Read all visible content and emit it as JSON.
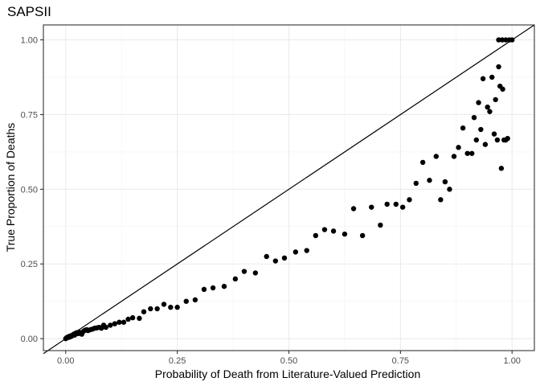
{
  "chart_data": {
    "type": "scatter",
    "title": "SAPSII",
    "xlabel": "Probability of Death from Literature-Valued Prediction",
    "ylabel": "True Proportion of Deaths",
    "xlim": [
      -0.05,
      1.05
    ],
    "ylim": [
      -0.04,
      1.05
    ],
    "x_ticks": [
      0.0,
      0.25,
      0.5,
      0.75,
      1.0
    ],
    "x_tick_labels": [
      "0.00",
      "0.25",
      "0.50",
      "0.75",
      "1.00"
    ],
    "y_ticks": [
      0.0,
      0.25,
      0.5,
      0.75,
      1.0
    ],
    "y_tick_labels": [
      "0.00",
      "0.25",
      "0.50",
      "0.75",
      "1.00"
    ],
    "grid": true,
    "reference_line": {
      "type": "identity",
      "from": [
        -0.05,
        -0.05
      ],
      "to": [
        1.05,
        1.05
      ]
    },
    "point_color": "#000000",
    "points": [
      [
        0.0,
        0.0
      ],
      [
        0.002,
        0.003
      ],
      [
        0.004,
        0.005
      ],
      [
        0.006,
        0.004
      ],
      [
        0.008,
        0.008
      ],
      [
        0.01,
        0.006
      ],
      [
        0.012,
        0.01
      ],
      [
        0.014,
        0.009
      ],
      [
        0.016,
        0.012
      ],
      [
        0.018,
        0.015
      ],
      [
        0.02,
        0.012
      ],
      [
        0.022,
        0.018
      ],
      [
        0.025,
        0.02
      ],
      [
        0.028,
        0.017
      ],
      [
        0.03,
        0.022
      ],
      [
        0.033,
        0.019
      ],
      [
        0.036,
        0.015
      ],
      [
        0.04,
        0.025
      ],
      [
        0.043,
        0.028
      ],
      [
        0.047,
        0.03
      ],
      [
        0.05,
        0.027
      ],
      [
        0.055,
        0.03
      ],
      [
        0.06,
        0.032
      ],
      [
        0.065,
        0.035
      ],
      [
        0.07,
        0.036
      ],
      [
        0.075,
        0.038
      ],
      [
        0.08,
        0.035
      ],
      [
        0.085,
        0.045
      ],
      [
        0.09,
        0.038
      ],
      [
        0.1,
        0.045
      ],
      [
        0.11,
        0.05
      ],
      [
        0.12,
        0.055
      ],
      [
        0.13,
        0.055
      ],
      [
        0.14,
        0.065
      ],
      [
        0.15,
        0.07
      ],
      [
        0.165,
        0.068
      ],
      [
        0.175,
        0.09
      ],
      [
        0.19,
        0.1
      ],
      [
        0.205,
        0.1
      ],
      [
        0.22,
        0.115
      ],
      [
        0.235,
        0.105
      ],
      [
        0.25,
        0.105
      ],
      [
        0.27,
        0.125
      ],
      [
        0.29,
        0.13
      ],
      [
        0.31,
        0.165
      ],
      [
        0.33,
        0.17
      ],
      [
        0.355,
        0.175
      ],
      [
        0.38,
        0.2
      ],
      [
        0.4,
        0.225
      ],
      [
        0.425,
        0.22
      ],
      [
        0.45,
        0.275
      ],
      [
        0.47,
        0.26
      ],
      [
        0.49,
        0.27
      ],
      [
        0.515,
        0.29
      ],
      [
        0.54,
        0.295
      ],
      [
        0.56,
        0.345
      ],
      [
        0.58,
        0.365
      ],
      [
        0.6,
        0.36
      ],
      [
        0.625,
        0.35
      ],
      [
        0.645,
        0.435
      ],
      [
        0.665,
        0.345
      ],
      [
        0.685,
        0.44
      ],
      [
        0.705,
        0.38
      ],
      [
        0.72,
        0.45
      ],
      [
        0.74,
        0.45
      ],
      [
        0.755,
        0.44
      ],
      [
        0.77,
        0.465
      ],
      [
        0.785,
        0.52
      ],
      [
        0.8,
        0.59
      ],
      [
        0.815,
        0.53
      ],
      [
        0.83,
        0.61
      ],
      [
        0.84,
        0.465
      ],
      [
        0.85,
        0.525
      ],
      [
        0.86,
        0.5
      ],
      [
        0.87,
        0.61
      ],
      [
        0.88,
        0.64
      ],
      [
        0.89,
        0.705
      ],
      [
        0.9,
        0.62
      ],
      [
        0.91,
        0.62
      ],
      [
        0.915,
        0.74
      ],
      [
        0.92,
        0.665
      ],
      [
        0.925,
        0.79
      ],
      [
        0.93,
        0.7
      ],
      [
        0.935,
        0.87
      ],
      [
        0.94,
        0.65
      ],
      [
        0.945,
        0.775
      ],
      [
        0.95,
        0.76
      ],
      [
        0.955,
        0.875
      ],
      [
        0.96,
        0.685
      ],
      [
        0.963,
        0.8
      ],
      [
        0.967,
        0.665
      ],
      [
        0.97,
        0.91
      ],
      [
        0.973,
        0.845
      ],
      [
        0.976,
        0.57
      ],
      [
        0.979,
        0.835
      ],
      [
        0.982,
        0.665
      ],
      [
        0.986,
        0.665
      ],
      [
        0.99,
        0.67
      ],
      [
        0.97,
        1.0
      ],
      [
        0.978,
        1.0
      ],
      [
        0.986,
        1.0
      ],
      [
        0.994,
        1.0
      ],
      [
        1.0,
        1.0
      ]
    ]
  }
}
